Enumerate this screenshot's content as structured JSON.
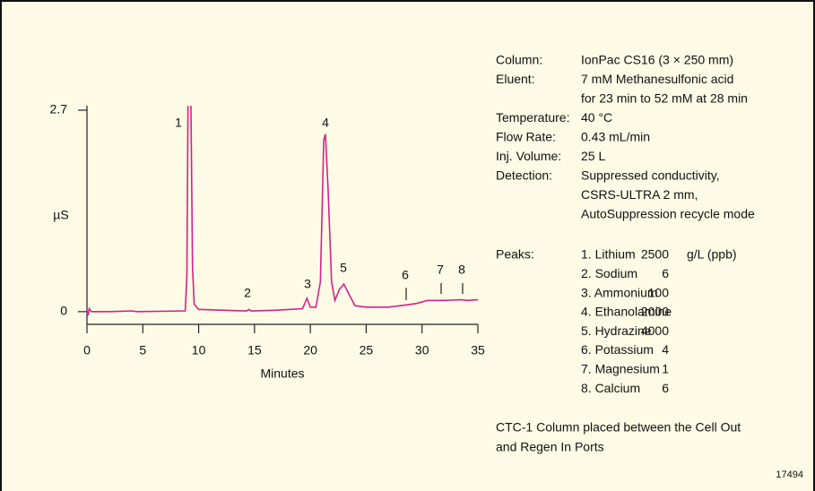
{
  "chart_data": {
    "type": "line",
    "y_label": "µS",
    "x_label": "Minutes",
    "xlim": [
      0,
      35
    ],
    "xticks": [
      0,
      5,
      10,
      15,
      20,
      25,
      30,
      35
    ],
    "ylim": [
      -0.17,
      2.7
    ],
    "yticks": [
      0,
      2.7
    ],
    "series": [
      {
        "color": "#d6218c",
        "x": [
          0,
          0.1,
          0.2,
          0.4,
          2,
          4,
          4.5,
          8.8,
          8.95,
          9.05,
          9.3,
          9.45,
          9.6,
          10,
          12,
          14.3,
          14.5,
          14.7,
          17,
          19.3,
          19.7,
          20,
          20.5,
          20.9,
          21.2,
          21.35,
          21.6,
          21.9,
          22.2,
          22.6,
          23,
          23.4,
          24,
          25,
          27,
          28.6,
          29.5,
          30.5,
          32,
          33.5,
          34,
          35
        ],
        "values": [
          0,
          -0.05,
          0.04,
          0,
          0,
          0.01,
          0,
          0.01,
          0.5,
          2.9,
          2.9,
          0.6,
          0.1,
          0.03,
          0.02,
          0.01,
          0.03,
          0.01,
          0.02,
          0.04,
          0.18,
          0.06,
          0.06,
          0.4,
          2.3,
          2.38,
          1.6,
          0.4,
          0.15,
          0.3,
          0.37,
          0.25,
          0.08,
          0.06,
          0.06,
          0.09,
          0.11,
          0.15,
          0.15,
          0.16,
          0.15,
          0.16
        ]
      }
    ],
    "peak_labels": [
      "1",
      "2",
      "3",
      "4",
      "5",
      "6",
      "7",
      "8"
    ]
  },
  "conditions": [
    {
      "label": "Column:",
      "value": [
        "IonPac CS16 (3 × 250 mm)"
      ]
    },
    {
      "label": "Eluent:",
      "value": [
        "7 mM Methanesulfonic acid",
        "for 23 min to 52 mM at 28 min"
      ]
    },
    {
      "label": "Temperature:",
      "value": [
        "40 °C"
      ]
    },
    {
      "label": "Flow Rate:",
      "value": [
        "0.43 mL/min"
      ]
    },
    {
      "label": "Inj. Volume:",
      "value": [
        "25 L"
      ]
    },
    {
      "label": "Detection:",
      "value": [
        "Suppressed conductivity,",
        "CSRS-ULTRA  2 mm,",
        "AutoSuppression recycle mode"
      ]
    }
  ],
  "peaks": {
    "label": "Peaks:",
    "unit": "g/L (ppb)",
    "items": [
      {
        "name": "1. Lithium",
        "conc": 2500
      },
      {
        "name": "2. Sodium",
        "conc": 6
      },
      {
        "name": "3. Ammonium",
        "conc": 100
      },
      {
        "name": "4. Ethanolamine",
        "conc": 2000
      },
      {
        "name": "5. Hydrazine",
        "conc": 4000
      },
      {
        "name": "6. Potassium",
        "conc": 4
      },
      {
        "name": "7. Magnesium",
        "conc": 1
      },
      {
        "name": "8. Calcium",
        "conc": 6
      }
    ]
  },
  "note": [
    "CTC-1 Column placed between the Cell Out",
    "and Regen In Ports"
  ],
  "figure_id": "17494"
}
